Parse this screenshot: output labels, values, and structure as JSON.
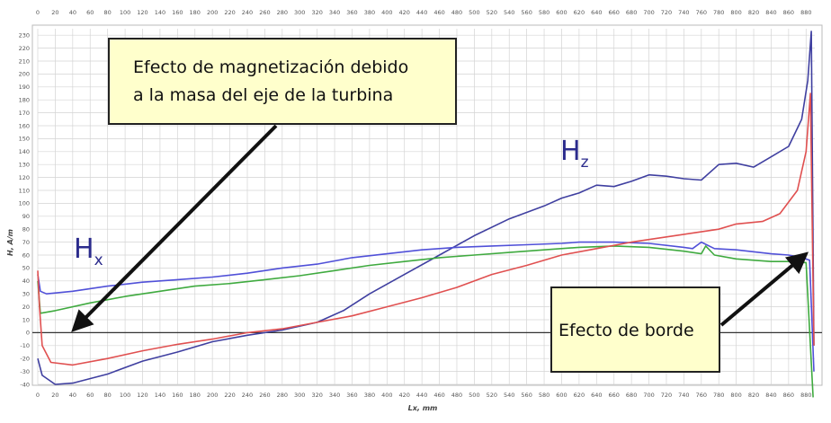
{
  "chart_data": {
    "type": "line",
    "title": "",
    "xlabel": "Lx, mm",
    "ylabel": "H, A/m",
    "xlim": [
      0,
      890
    ],
    "ylim": [
      -40,
      235
    ],
    "x_ticks": [
      0,
      20,
      40,
      60,
      80,
      100,
      120,
      140,
      160,
      180,
      200,
      220,
      240,
      260,
      280,
      300,
      320,
      340,
      360,
      380,
      400,
      420,
      440,
      460,
      480,
      500,
      520,
      540,
      560,
      580,
      600,
      620,
      640,
      660,
      680,
      700,
      720,
      740,
      760,
      780,
      800,
      820,
      840,
      860,
      880
    ],
    "y_ticks": [
      -40,
      -30,
      -20,
      -10,
      0,
      10,
      20,
      30,
      40,
      50,
      60,
      70,
      80,
      90,
      100,
      110,
      120,
      130,
      140,
      150,
      160,
      170,
      180,
      190,
      200,
      210,
      220,
      230
    ],
    "grid": true,
    "legend": "none",
    "series": [
      {
        "name": "Hz",
        "color": "#3f3fa0",
        "points": [
          [
            0,
            -20
          ],
          [
            5,
            -33
          ],
          [
            20,
            -40
          ],
          [
            40,
            -39
          ],
          [
            80,
            -32
          ],
          [
            120,
            -22
          ],
          [
            160,
            -15
          ],
          [
            200,
            -7
          ],
          [
            240,
            -2
          ],
          [
            280,
            2
          ],
          [
            320,
            8
          ],
          [
            350,
            17
          ],
          [
            380,
            30
          ],
          [
            420,
            45
          ],
          [
            460,
            60
          ],
          [
            500,
            75
          ],
          [
            540,
            88
          ],
          [
            580,
            98
          ],
          [
            600,
            104
          ],
          [
            620,
            108
          ],
          [
            640,
            114
          ],
          [
            660,
            113
          ],
          [
            680,
            117
          ],
          [
            700,
            122
          ],
          [
            720,
            121
          ],
          [
            740,
            119
          ],
          [
            760,
            118
          ],
          [
            780,
            130
          ],
          [
            800,
            131
          ],
          [
            820,
            128
          ],
          [
            840,
            136
          ],
          [
            860,
            144
          ],
          [
            875,
            165
          ],
          [
            882,
            195
          ],
          [
            886,
            233
          ],
          [
            889,
            -10
          ]
        ]
      },
      {
        "name": "Hx",
        "color": "#5050d8",
        "points": [
          [
            0,
            45
          ],
          [
            3,
            32
          ],
          [
            10,
            30
          ],
          [
            40,
            32
          ],
          [
            80,
            36
          ],
          [
            120,
            39
          ],
          [
            160,
            41
          ],
          [
            200,
            43
          ],
          [
            240,
            46
          ],
          [
            280,
            50
          ],
          [
            320,
            53
          ],
          [
            360,
            58
          ],
          [
            400,
            61
          ],
          [
            440,
            64
          ],
          [
            480,
            66
          ],
          [
            520,
            67
          ],
          [
            560,
            68
          ],
          [
            600,
            69
          ],
          [
            620,
            70
          ],
          [
            660,
            70
          ],
          [
            700,
            69
          ],
          [
            740,
            66
          ],
          [
            750,
            65
          ],
          [
            760,
            70
          ],
          [
            775,
            65
          ],
          [
            800,
            64
          ],
          [
            840,
            61
          ],
          [
            860,
            60
          ],
          [
            876,
            58
          ],
          [
            884,
            56
          ],
          [
            889,
            -30
          ]
        ]
      },
      {
        "name": "",
        "color": "#3faa3f",
        "points": [
          [
            0,
            40
          ],
          [
            3,
            15
          ],
          [
            20,
            17
          ],
          [
            60,
            23
          ],
          [
            100,
            28
          ],
          [
            140,
            32
          ],
          [
            180,
            36
          ],
          [
            220,
            38
          ],
          [
            260,
            41
          ],
          [
            300,
            44
          ],
          [
            340,
            48
          ],
          [
            380,
            52
          ],
          [
            420,
            55
          ],
          [
            460,
            58
          ],
          [
            500,
            60
          ],
          [
            540,
            62
          ],
          [
            580,
            64
          ],
          [
            620,
            66
          ],
          [
            660,
            67
          ],
          [
            700,
            66
          ],
          [
            740,
            63
          ],
          [
            760,
            61
          ],
          [
            765,
            67
          ],
          [
            775,
            60
          ],
          [
            800,
            57
          ],
          [
            840,
            55
          ],
          [
            870,
            55
          ],
          [
            880,
            54
          ],
          [
            888,
            -50
          ]
        ]
      },
      {
        "name": "",
        "color": "#e05050",
        "points": [
          [
            0,
            48
          ],
          [
            2,
            20
          ],
          [
            5,
            -10
          ],
          [
            15,
            -23
          ],
          [
            40,
            -25
          ],
          [
            80,
            -20
          ],
          [
            120,
            -14
          ],
          [
            160,
            -9
          ],
          [
            200,
            -5
          ],
          [
            240,
            0
          ],
          [
            280,
            3
          ],
          [
            320,
            8
          ],
          [
            360,
            13
          ],
          [
            400,
            20
          ],
          [
            440,
            27
          ],
          [
            480,
            35
          ],
          [
            520,
            45
          ],
          [
            560,
            52
          ],
          [
            600,
            60
          ],
          [
            640,
            65
          ],
          [
            680,
            70
          ],
          [
            720,
            74
          ],
          [
            760,
            78
          ],
          [
            780,
            80
          ],
          [
            800,
            84
          ],
          [
            830,
            86
          ],
          [
            850,
            92
          ],
          [
            870,
            110
          ],
          [
            880,
            140
          ],
          [
            885,
            185
          ],
          [
            889,
            -10
          ]
        ]
      }
    ],
    "annotations": [
      "Efecto de magnetización debido a la masa del eje de la turbina",
      "Efecto de borde"
    ],
    "series_labels": {
      "hz_main": "H",
      "hz_sub": "z",
      "hx_main": "H",
      "hx_sub": "x"
    }
  },
  "notes": {
    "note1_line1": "Efecto de magnetización debido",
    "note1_line2": "a la masa del eje de la turbina",
    "note2": "Efecto de borde"
  }
}
